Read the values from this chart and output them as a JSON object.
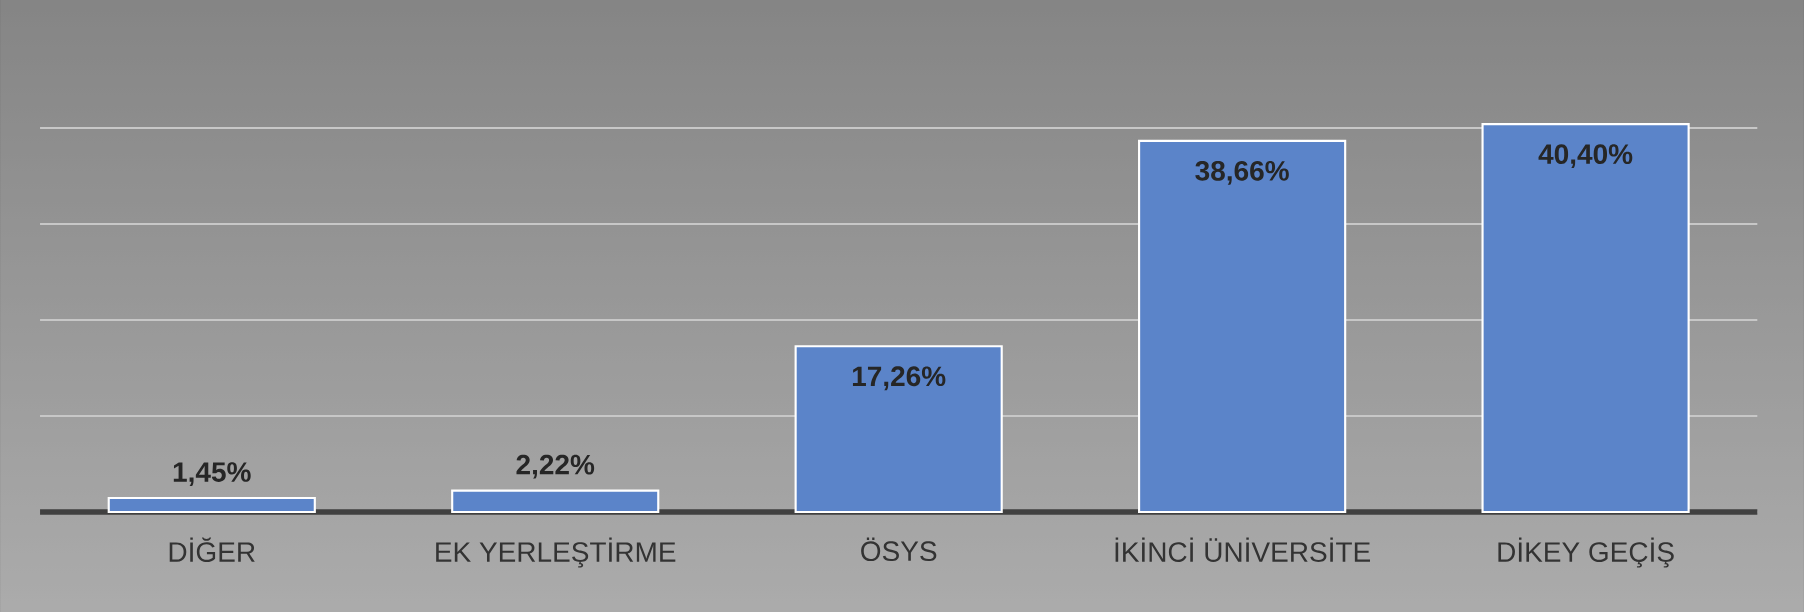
{
  "chart_data": {
    "type": "bar",
    "categories": [
      "DİĞER",
      "EK YERLEŞTİRME",
      "ÖSYS",
      "İKİNCİ ÜNİVERSİTE",
      "DİKEY GEÇİŞ"
    ],
    "values": [
      1.45,
      2.22,
      17.26,
      38.66,
      40.4
    ],
    "value_labels": [
      "1,45%",
      "2,22%",
      "17,26%",
      "38,66%",
      "40,40%"
    ],
    "color": "#5b84c9",
    "grid": "y",
    "tick_labels": "x"
  }
}
